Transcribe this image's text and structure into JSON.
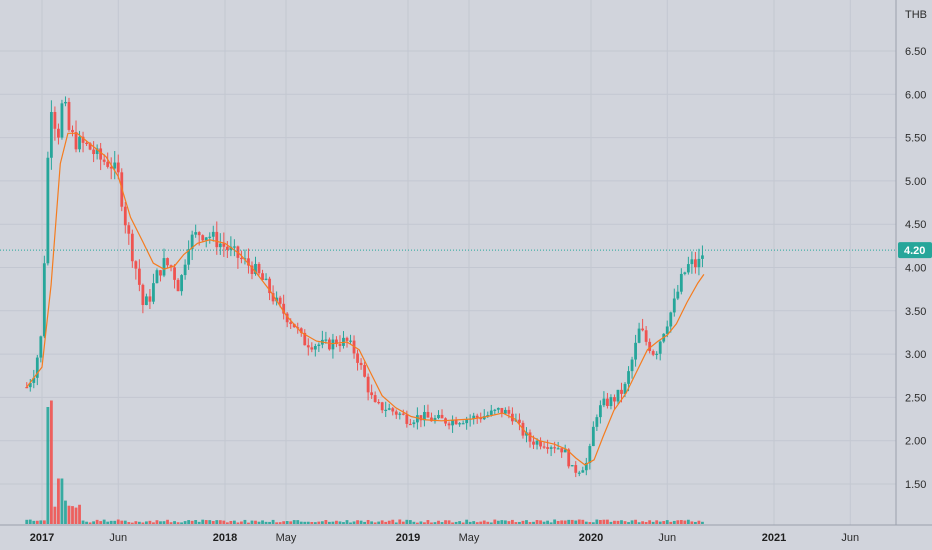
{
  "chart_data": {
    "type": "candlestick",
    "currency": "THB",
    "last_price_label": "4.20",
    "last_price": 4.2,
    "ylim": [
      1.2,
      6.95
    ],
    "y_ticks": [
      "1.50",
      "2.00",
      "2.50",
      "3.00",
      "3.50",
      "4.00",
      "4.50",
      "5.00",
      "5.50",
      "6.00",
      "6.50"
    ],
    "x_ticks": [
      {
        "label": "2017",
        "bold": true,
        "month_index": 12
      },
      {
        "label": "Jun",
        "bold": false,
        "month_index": 17
      },
      {
        "label": "2018",
        "bold": true,
        "month_index": 24
      },
      {
        "label": "May",
        "bold": false,
        "month_index": 28
      },
      {
        "label": "2019",
        "bold": true,
        "month_index": 36
      },
      {
        "label": "May",
        "bold": false,
        "month_index": 40
      },
      {
        "label": "2020",
        "bold": true,
        "month_index": 48
      },
      {
        "label": "Jun",
        "bold": false,
        "month_index": 53
      },
      {
        "label": "2021",
        "bold": true,
        "month_index": 60
      },
      {
        "label": "Jun",
        "bold": false,
        "month_index": 65
      }
    ],
    "colors": {
      "background": "#d1d4dc",
      "up": "#26a69a",
      "down": "#ef5350",
      "moving_average": "#f57c1f",
      "last_price_line": "#26a69a",
      "last_price_box": "#26a69a"
    },
    "grid": true,
    "legend": "none",
    "series": [
      {
        "name": "price",
        "type": "candlestick",
        "interval": "weekly"
      },
      {
        "name": "volume",
        "type": "bar"
      },
      {
        "name": "moving average",
        "type": "line"
      }
    ],
    "price_path_anchors": [
      [
        11.0,
        2.62
      ],
      [
        11.5,
        2.8
      ],
      [
        12.0,
        3.25
      ],
      [
        12.3,
        4.9
      ],
      [
        12.55,
        5.95
      ],
      [
        12.8,
        5.7
      ],
      [
        13.1,
        5.55
      ],
      [
        13.4,
        6.0
      ],
      [
        13.7,
        5.6
      ],
      [
        14.2,
        5.45
      ],
      [
        15.0,
        5.4
      ],
      [
        15.8,
        5.25
      ],
      [
        16.5,
        5.2
      ],
      [
        17.0,
        5.05
      ],
      [
        17.5,
        4.5
      ],
      [
        18.0,
        4.1
      ],
      [
        18.3,
        3.9
      ],
      [
        18.6,
        3.57
      ],
      [
        19.0,
        3.62
      ],
      [
        19.5,
        3.9
      ],
      [
        20.0,
        4.05
      ],
      [
        20.5,
        4.0
      ],
      [
        21.0,
        3.75
      ],
      [
        21.6,
        4.3
      ],
      [
        22.3,
        4.4
      ],
      [
        22.9,
        4.38
      ],
      [
        23.5,
        4.3
      ],
      [
        24.3,
        4.2
      ],
      [
        25.0,
        4.1
      ],
      [
        25.8,
        4.0
      ],
      [
        26.6,
        3.82
      ],
      [
        27.5,
        3.55
      ],
      [
        28.5,
        3.35
      ],
      [
        29.1,
        3.15
      ],
      [
        29.8,
        3.12
      ],
      [
        30.6,
        3.1
      ],
      [
        31.3,
        3.15
      ],
      [
        32.0,
        3.14
      ],
      [
        32.6,
        3.0
      ],
      [
        33.2,
        2.7
      ],
      [
        33.8,
        2.4
      ],
      [
        34.5,
        2.38
      ],
      [
        35.3,
        2.32
      ],
      [
        36.0,
        2.25
      ],
      [
        36.8,
        2.28
      ],
      [
        37.5,
        2.25
      ],
      [
        38.5,
        2.23
      ],
      [
        39.5,
        2.25
      ],
      [
        40.5,
        2.27
      ],
      [
        41.3,
        2.3
      ],
      [
        42.0,
        2.35
      ],
      [
        42.8,
        2.3
      ],
      [
        43.4,
        2.12
      ],
      [
        44.0,
        2.0
      ],
      [
        44.8,
        1.98
      ],
      [
        45.5,
        1.95
      ],
      [
        46.2,
        1.9
      ],
      [
        46.8,
        1.65
      ],
      [
        47.2,
        1.67
      ],
      [
        47.8,
        1.75
      ],
      [
        48.3,
        2.3
      ],
      [
        48.8,
        2.42
      ],
      [
        49.5,
        2.48
      ],
      [
        50.2,
        2.6
      ],
      [
        50.8,
        3.0
      ],
      [
        51.2,
        3.3
      ],
      [
        51.6,
        3.15
      ],
      [
        52.2,
        3.0
      ],
      [
        52.8,
        3.3
      ],
      [
        53.4,
        3.55
      ],
      [
        54.0,
        3.9
      ],
      [
        54.5,
        4.05
      ],
      [
        55.0,
        4.02
      ],
      [
        55.4,
        4.2
      ]
    ],
    "ma_anchors": [
      [
        11.0,
        2.62
      ],
      [
        12.0,
        2.85
      ],
      [
        12.6,
        3.8
      ],
      [
        13.2,
        5.2
      ],
      [
        13.7,
        5.55
      ],
      [
        14.3,
        5.55
      ],
      [
        15.2,
        5.42
      ],
      [
        16.2,
        5.28
      ],
      [
        17.0,
        5.05
      ],
      [
        17.8,
        4.58
      ],
      [
        18.6,
        4.3
      ],
      [
        19.3,
        4.05
      ],
      [
        20.0,
        3.98
      ],
      [
        20.7,
        4.02
      ],
      [
        21.3,
        4.15
      ],
      [
        22.2,
        4.28
      ],
      [
        23.0,
        4.32
      ],
      [
        24.0,
        4.28
      ],
      [
        25.0,
        4.15
      ],
      [
        26.0,
        3.95
      ],
      [
        27.0,
        3.72
      ],
      [
        28.0,
        3.45
      ],
      [
        29.0,
        3.25
      ],
      [
        30.0,
        3.15
      ],
      [
        31.0,
        3.12
      ],
      [
        32.0,
        3.14
      ],
      [
        32.8,
        3.05
      ],
      [
        33.5,
        2.8
      ],
      [
        34.3,
        2.52
      ],
      [
        35.2,
        2.38
      ],
      [
        36.2,
        2.28
      ],
      [
        37.2,
        2.24
      ],
      [
        38.2,
        2.23
      ],
      [
        39.2,
        2.24
      ],
      [
        40.2,
        2.25
      ],
      [
        41.2,
        2.28
      ],
      [
        42.2,
        2.32
      ],
      [
        43.0,
        2.25
      ],
      [
        43.8,
        2.08
      ],
      [
        44.6,
        2.0
      ],
      [
        45.6,
        1.96
      ],
      [
        46.4,
        1.9
      ],
      [
        47.0,
        1.8
      ],
      [
        47.6,
        1.72
      ],
      [
        48.2,
        1.78
      ],
      [
        48.8,
        2.05
      ],
      [
        49.5,
        2.35
      ],
      [
        50.3,
        2.55
      ],
      [
        51.0,
        2.8
      ],
      [
        51.7,
        3.05
      ],
      [
        52.4,
        3.15
      ],
      [
        53.0,
        3.22
      ],
      [
        53.6,
        3.35
      ],
      [
        54.3,
        3.6
      ],
      [
        55.0,
        3.82
      ],
      [
        55.4,
        3.92
      ]
    ],
    "volume_spikes": [
      [
        12.35,
        0.9
      ],
      [
        12.45,
        0.45
      ],
      [
        12.6,
        0.95
      ],
      [
        12.7,
        0.4
      ],
      [
        13.0,
        0.25
      ],
      [
        13.2,
        0.35
      ],
      [
        13.4,
        0.18
      ],
      [
        13.7,
        0.12
      ],
      [
        14.2,
        0.08
      ]
    ]
  }
}
